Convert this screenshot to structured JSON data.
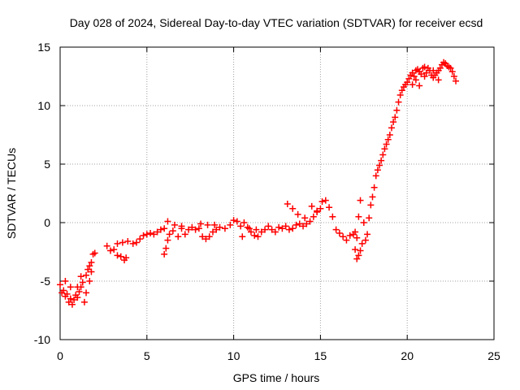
{
  "chart_data": {
    "type": "scatter",
    "title": "Day 028 of 2024, Sidereal Day-to-day VTEC variation (SDTVAR) for receiver ecsd",
    "xlabel": "GPS time / hours",
    "ylabel": "SDTVAR / TECUs",
    "xlim": [
      0,
      25
    ],
    "ylim": [
      -10,
      15
    ],
    "x_ticks": [
      0,
      5,
      10,
      15,
      20,
      25
    ],
    "x_tick_labels": [
      "0",
      "5",
      "10",
      "15",
      "20",
      "25"
    ],
    "y_ticks": [
      -10,
      -5,
      0,
      5,
      10,
      15
    ],
    "y_tick_labels": [
      "-10",
      "-5",
      "0",
      "5",
      "10",
      "15"
    ],
    "grid": true,
    "marker": "+",
    "series": [
      {
        "name": "SDTVAR",
        "color": "#ff0000",
        "points": [
          [
            0.0,
            -5.3
          ],
          [
            0.1,
            -6.0
          ],
          [
            0.2,
            -5.8
          ],
          [
            0.3,
            -6.3
          ],
          [
            0.4,
            -6.1
          ],
          [
            0.5,
            -6.8
          ],
          [
            0.6,
            -6.5
          ],
          [
            0.7,
            -7.0
          ],
          [
            0.8,
            -6.6
          ],
          [
            0.9,
            -6.2
          ],
          [
            1.0,
            -6.4
          ],
          [
            1.1,
            -5.9
          ],
          [
            1.2,
            -5.5
          ],
          [
            1.3,
            -5.1
          ],
          [
            1.4,
            -6.8
          ],
          [
            1.5,
            -4.5
          ],
          [
            1.6,
            -4.0
          ],
          [
            1.7,
            -3.7
          ],
          [
            1.8,
            -3.4
          ],
          [
            1.9,
            -2.7
          ],
          [
            2.0,
            -2.6
          ],
          [
            0.3,
            -5.0
          ],
          [
            0.6,
            -5.5
          ],
          [
            1.0,
            -5.5
          ],
          [
            1.2,
            -4.6
          ],
          [
            1.5,
            -6.0
          ],
          [
            1.7,
            -5.0
          ],
          [
            1.8,
            -4.2
          ],
          [
            2.7,
            -2.0
          ],
          [
            2.9,
            -2.4
          ],
          [
            3.1,
            -2.3
          ],
          [
            3.3,
            -2.8
          ],
          [
            3.5,
            -2.9
          ],
          [
            3.7,
            -3.2
          ],
          [
            3.8,
            -3.0
          ],
          [
            3.3,
            -1.8
          ],
          [
            3.6,
            -1.7
          ],
          [
            3.9,
            -1.6
          ],
          [
            4.2,
            -1.8
          ],
          [
            4.4,
            -1.7
          ],
          [
            4.6,
            -1.4
          ],
          [
            4.8,
            -1.1
          ],
          [
            5.0,
            -1.0
          ],
          [
            5.2,
            -0.9
          ],
          [
            5.4,
            -1.0
          ],
          [
            5.6,
            -0.8
          ],
          [
            5.8,
            -0.6
          ],
          [
            6.0,
            -0.5
          ],
          [
            6.2,
            -1.5
          ],
          [
            6.1,
            -2.2
          ],
          [
            6.0,
            -2.7
          ],
          [
            6.3,
            -1.0
          ],
          [
            6.5,
            -0.7
          ],
          [
            6.8,
            -1.2
          ],
          [
            7.0,
            -0.5
          ],
          [
            7.2,
            -1.0
          ],
          [
            7.4,
            -0.6
          ],
          [
            7.6,
            -0.4
          ],
          [
            7.8,
            -0.6
          ],
          [
            6.2,
            0.1
          ],
          [
            6.6,
            -0.2
          ],
          [
            7.0,
            -0.3
          ],
          [
            8.0,
            -0.5
          ],
          [
            8.2,
            -1.2
          ],
          [
            8.4,
            -1.4
          ],
          [
            8.6,
            -1.2
          ],
          [
            8.8,
            -0.8
          ],
          [
            9.0,
            -0.6
          ],
          [
            8.1,
            -0.1
          ],
          [
            8.5,
            -0.2
          ],
          [
            8.9,
            -0.2
          ],
          [
            9.2,
            -0.4
          ],
          [
            9.5,
            -0.5
          ],
          [
            9.8,
            -0.2
          ],
          [
            10.0,
            0.2
          ],
          [
            10.2,
            0.1
          ],
          [
            10.4,
            -0.3
          ],
          [
            10.6,
            0.0
          ],
          [
            10.8,
            -0.4
          ],
          [
            11.0,
            -0.8
          ],
          [
            11.2,
            -1.1
          ],
          [
            11.4,
            -1.2
          ],
          [
            11.6,
            -0.8
          ],
          [
            11.8,
            -0.6
          ],
          [
            12.0,
            -0.3
          ],
          [
            10.5,
            -1.2
          ],
          [
            10.9,
            -0.5
          ],
          [
            11.3,
            -0.6
          ],
          [
            12.2,
            -0.6
          ],
          [
            12.4,
            -0.8
          ],
          [
            12.6,
            -0.4
          ],
          [
            12.8,
            -0.5
          ],
          [
            13.0,
            -0.3
          ],
          [
            13.2,
            -0.6
          ],
          [
            13.4,
            -0.5
          ],
          [
            13.6,
            -0.2
          ],
          [
            13.8,
            -0.1
          ],
          [
            14.0,
            -0.3
          ],
          [
            14.2,
            -0.1
          ],
          [
            14.4,
            0.1
          ],
          [
            14.6,
            0.5
          ],
          [
            14.8,
            0.9
          ],
          [
            15.0,
            1.2
          ],
          [
            13.1,
            1.6
          ],
          [
            13.4,
            1.2
          ],
          [
            13.7,
            0.7
          ],
          [
            14.1,
            0.4
          ],
          [
            14.5,
            1.4
          ],
          [
            14.8,
            1.0
          ],
          [
            15.1,
            1.8
          ],
          [
            15.3,
            1.9
          ],
          [
            15.5,
            1.3
          ],
          [
            15.7,
            0.5
          ],
          [
            15.9,
            -0.6
          ],
          [
            16.1,
            -0.9
          ],
          [
            16.3,
            -1.2
          ],
          [
            16.5,
            -1.5
          ],
          [
            16.7,
            -1.1
          ],
          [
            16.9,
            -1.0
          ],
          [
            17.0,
            -0.8
          ],
          [
            17.1,
            -1.3
          ],
          [
            17.2,
            -2.8
          ],
          [
            17.3,
            -2.4
          ],
          [
            17.4,
            -1.8
          ],
          [
            17.1,
            -3.1
          ],
          [
            17.0,
            -2.3
          ],
          [
            17.2,
            0.5
          ],
          [
            17.3,
            1.9
          ],
          [
            17.5,
            0.0
          ],
          [
            17.6,
            -1.5
          ],
          [
            17.7,
            -1.0
          ],
          [
            17.8,
            0.4
          ],
          [
            17.9,
            1.5
          ],
          [
            18.0,
            2.2
          ],
          [
            18.1,
            3.0
          ],
          [
            18.2,
            4.0
          ],
          [
            18.3,
            4.5
          ],
          [
            18.4,
            4.9
          ],
          [
            18.5,
            5.3
          ],
          [
            18.6,
            5.8
          ],
          [
            18.7,
            6.3
          ],
          [
            18.8,
            6.7
          ],
          [
            18.9,
            7.1
          ],
          [
            19.0,
            7.5
          ],
          [
            19.1,
            8.1
          ],
          [
            19.2,
            8.6
          ],
          [
            19.3,
            9.0
          ],
          [
            19.4,
            9.6
          ],
          [
            19.5,
            10.3
          ],
          [
            19.6,
            10.9
          ],
          [
            19.7,
            11.3
          ],
          [
            19.8,
            11.6
          ],
          [
            19.9,
            11.8
          ],
          [
            20.0,
            12.0
          ],
          [
            20.1,
            12.3
          ],
          [
            20.2,
            12.6
          ],
          [
            20.3,
            12.8
          ],
          [
            20.4,
            12.5
          ],
          [
            20.5,
            13.0
          ],
          [
            20.6,
            13.1
          ],
          [
            20.7,
            12.9
          ],
          [
            20.8,
            12.7
          ],
          [
            20.9,
            13.2
          ],
          [
            21.0,
            13.3
          ],
          [
            21.1,
            12.8
          ],
          [
            21.2,
            13.2
          ],
          [
            21.3,
            13.0
          ],
          [
            21.4,
            12.6
          ],
          [
            21.5,
            12.4
          ],
          [
            21.6,
            12.6
          ],
          [
            21.7,
            12.8
          ],
          [
            21.8,
            13.0
          ],
          [
            21.9,
            13.2
          ],
          [
            22.0,
            13.5
          ],
          [
            22.1,
            13.7
          ],
          [
            22.2,
            13.6
          ],
          [
            22.3,
            13.4
          ],
          [
            22.4,
            13.3
          ],
          [
            22.5,
            13.2
          ],
          [
            22.6,
            12.9
          ],
          [
            22.7,
            12.5
          ],
          [
            22.8,
            12.1
          ],
          [
            20.5,
            12.2
          ],
          [
            20.3,
            11.8
          ],
          [
            20.7,
            11.7
          ],
          [
            21.0,
            12.5
          ],
          [
            21.5,
            13.0
          ],
          [
            21.8,
            12.2
          ]
        ]
      }
    ]
  }
}
